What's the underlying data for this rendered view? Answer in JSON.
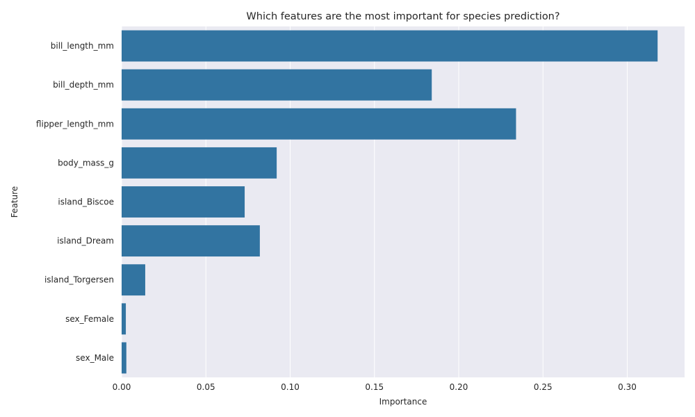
{
  "chart_data": {
    "type": "bar",
    "orientation": "horizontal",
    "title": "Which features are the most important for species prediction?",
    "xlabel": "Importance",
    "ylabel": "Feature",
    "categories": [
      "bill_length_mm",
      "bill_depth_mm",
      "flipper_length_mm",
      "body_mass_g",
      "island_Biscoe",
      "island_Dream",
      "island_Torgersen",
      "sex_Female",
      "sex_Male"
    ],
    "values": [
      0.318,
      0.184,
      0.234,
      0.092,
      0.073,
      0.082,
      0.014,
      0.0025,
      0.0028
    ],
    "xlim": [
      0,
      0.334
    ],
    "xticks": [
      0.0,
      0.05,
      0.1,
      0.15,
      0.2,
      0.25,
      0.3
    ],
    "xtick_labels": [
      "0.00",
      "0.05",
      "0.10",
      "0.15",
      "0.20",
      "0.25",
      "0.30"
    ],
    "grid": true,
    "colors": {
      "bar": "#3274a1",
      "background": "#eaeaf2",
      "grid": "#ffffff",
      "text": "#262626"
    }
  }
}
